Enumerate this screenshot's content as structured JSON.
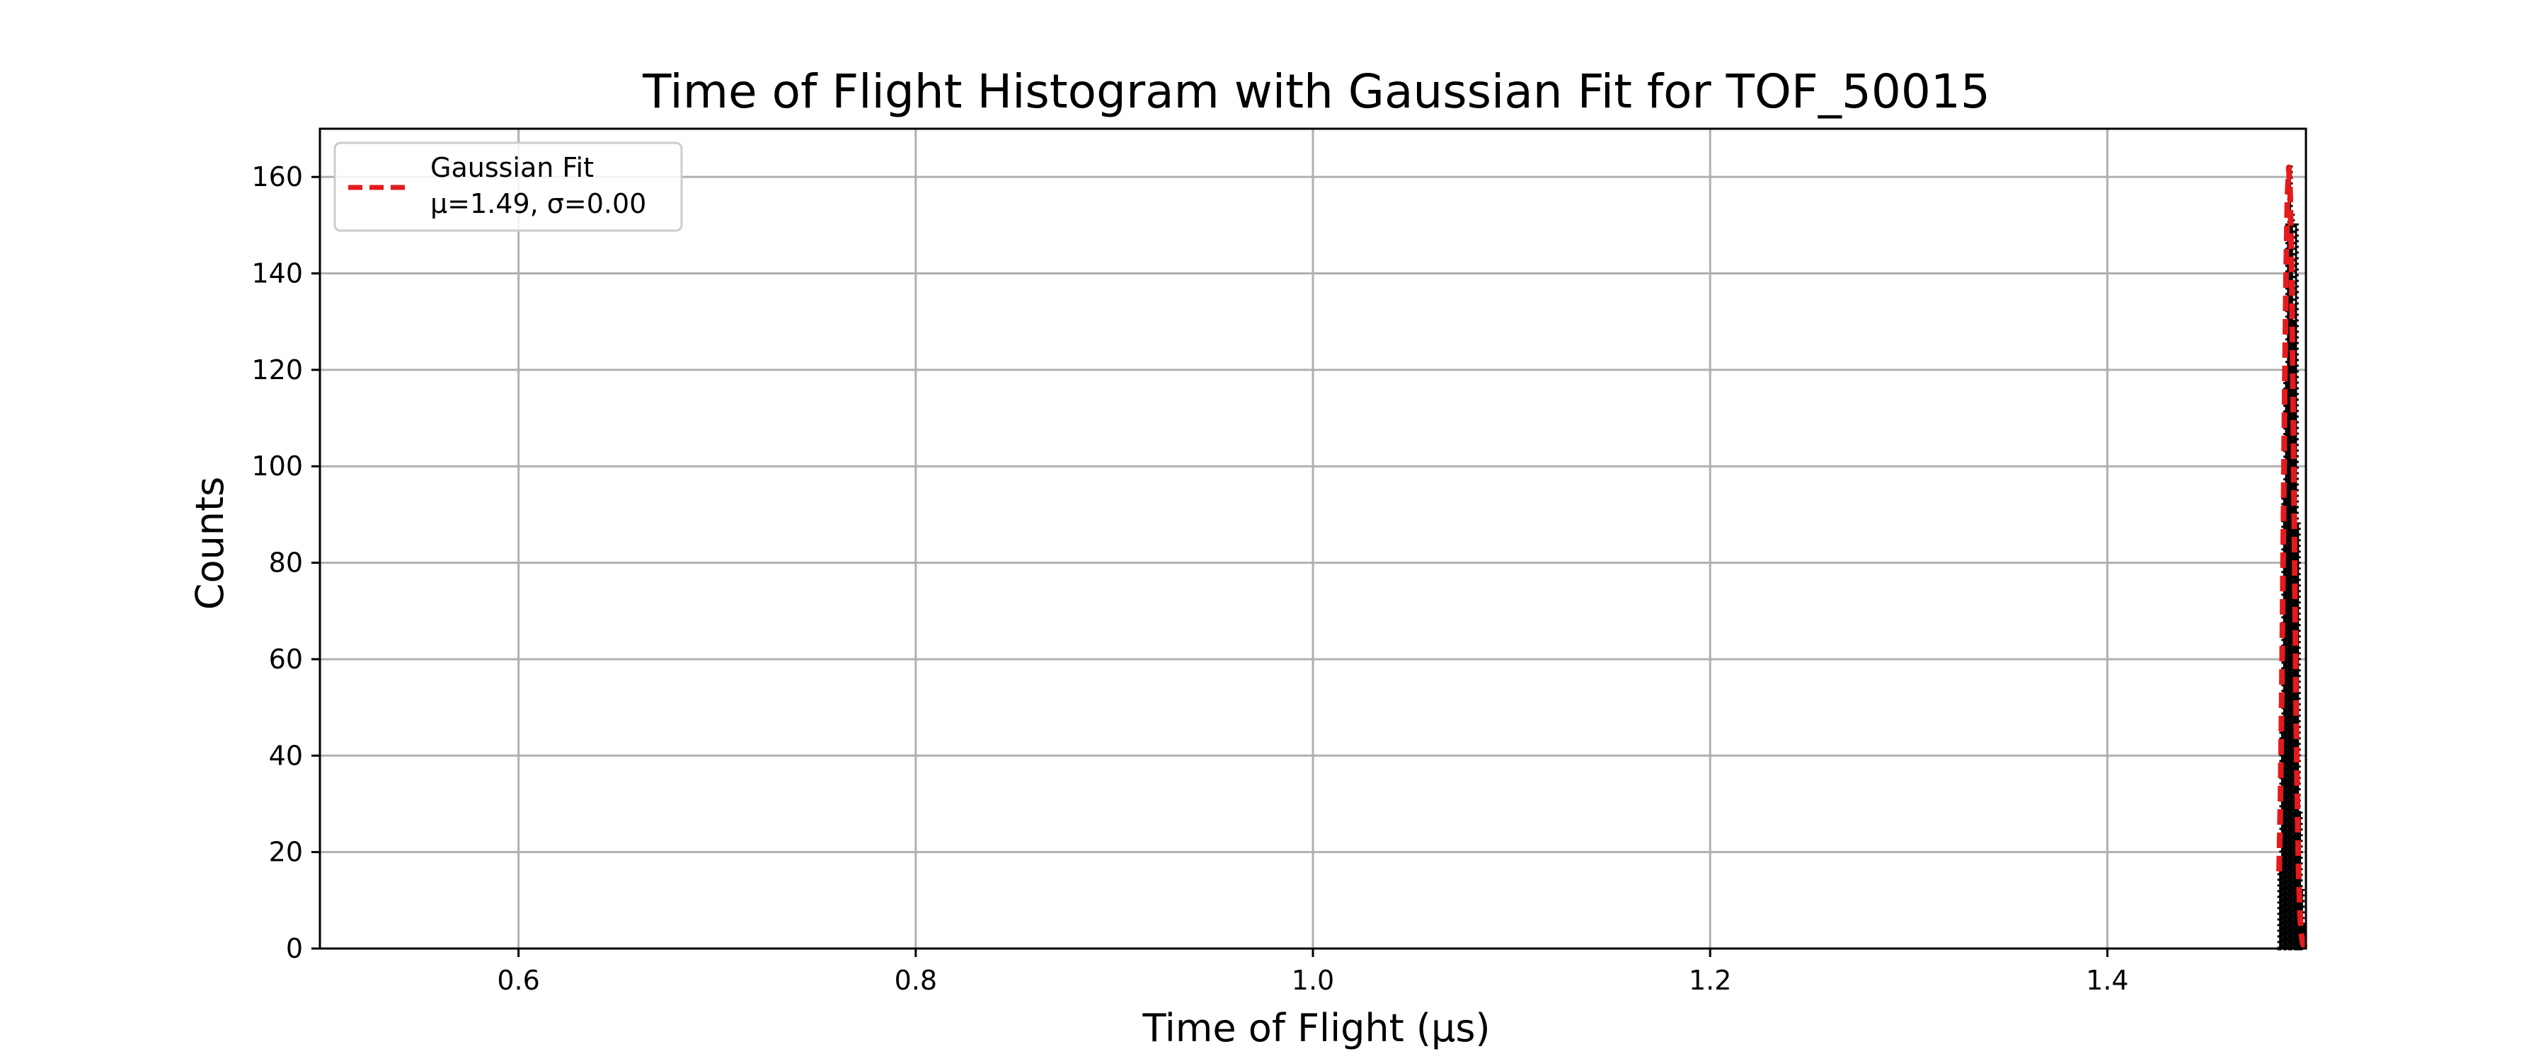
{
  "chart_data": {
    "type": "bar",
    "title": "Time of Flight Histogram with Gaussian Fit for TOF_50015",
    "xlabel": "Time of Flight (µs)",
    "ylabel": "Counts",
    "xlim": [
      0.5,
      1.5
    ],
    "ylim": [
      0,
      170
    ],
    "xticks": [
      0.6,
      0.8,
      1.0,
      1.2,
      1.4
    ],
    "xtick_labels": [
      "0.6",
      "0.8",
      "1.0",
      "1.2",
      "1.4"
    ],
    "yticks": [
      0,
      20,
      40,
      60,
      80,
      100,
      120,
      140,
      160
    ],
    "ytick_labels": [
      "0",
      "20",
      "40",
      "60",
      "80",
      "100",
      "120",
      "140",
      "160"
    ],
    "grid": true,
    "histogram": {
      "bin_edges": [
        1.4865,
        1.4875,
        1.4885,
        1.4895,
        1.4905,
        1.4915,
        1.4925,
        1.4935,
        1.4945,
        1.4955,
        1.4965,
        1.4975,
        1.4985,
        1.4995
      ],
      "counts": [
        18,
        45,
        95,
        118,
        150,
        162,
        152,
        130,
        150,
        88,
        28,
        12,
        5
      ],
      "fill_color": "#000000",
      "edge_color": "#000000",
      "edge_style": "dotted"
    },
    "series": [
      {
        "name": "Gaussian Fit\nμ=1.49, σ=0.00",
        "type": "line",
        "style": "dashed",
        "color": "#e41a1c",
        "x": [
          1.4865,
          1.4872,
          1.4879,
          1.4886,
          1.4893,
          1.49,
          1.4907,
          1.4914,
          1.4921,
          1.4928,
          1.4935,
          1.4942,
          1.4949,
          1.4956,
          1.4963,
          1.497,
          1.4977,
          1.4984,
          1.4991,
          1.4998
        ],
        "y": [
          16,
          32,
          55,
          85,
          115,
          140,
          156,
          162,
          156,
          140,
          115,
          85,
          55,
          32,
          16,
          7,
          3,
          1,
          0.5,
          0.2
        ]
      }
    ],
    "legend": {
      "position": "upper-left",
      "line1": "Gaussian Fit",
      "line2": "μ=1.49, σ=0.00"
    }
  }
}
